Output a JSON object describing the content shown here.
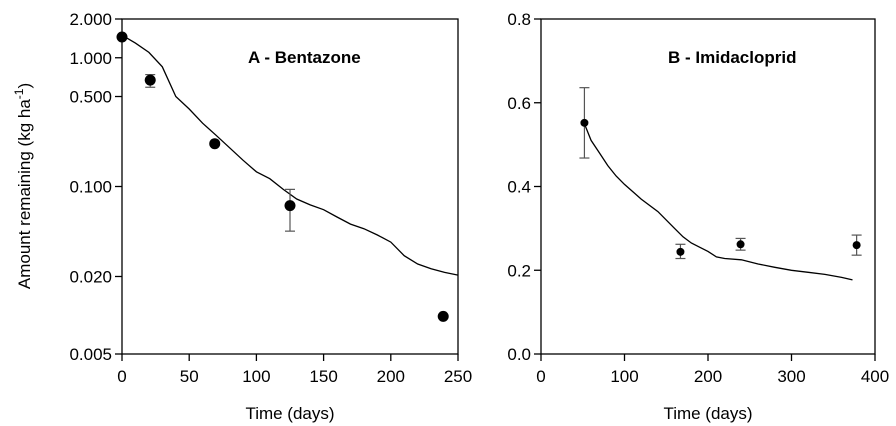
{
  "chart_data": [
    {
      "type": "scatter",
      "title": "A - Bentazone",
      "xlabel": "Time (days)",
      "ylabel_main": "Amount remaining (kg ha",
      "ylabel_sup": "-1",
      "ylabel_close": ")",
      "yscale": "log",
      "xlim": [
        0,
        250
      ],
      "ylim": [
        0.005,
        2.0
      ],
      "xticks": [
        0,
        50,
        100,
        150,
        200,
        250
      ],
      "xtick_labels": [
        "0",
        "50",
        "100",
        "150",
        "200",
        "250"
      ],
      "yticks": [
        0.005,
        0.02,
        0.1,
        0.5,
        1.0,
        2.0
      ],
      "ytick_labels": [
        "0.005",
        "0.020",
        "0.100",
        "0.500",
        "1.000",
        "2.000"
      ],
      "points": [
        {
          "x": 0,
          "y": 1.45
        },
        {
          "x": 21,
          "y": 0.67,
          "err_low": 0.59,
          "err_high": 0.74
        },
        {
          "x": 69,
          "y": 0.215
        },
        {
          "x": 125,
          "y": 0.071,
          "err_low": 0.045,
          "err_high": 0.095
        },
        {
          "x": 239,
          "y": 0.0098
        }
      ],
      "model_line": {
        "x": [
          0,
          10,
          20,
          30,
          40,
          50,
          60,
          70,
          80,
          90,
          100,
          110,
          120,
          130,
          140,
          150,
          160,
          170,
          180,
          190,
          200,
          210,
          220,
          230,
          240,
          250
        ],
        "y": [
          1.5,
          1.3,
          1.1,
          0.85,
          0.5,
          0.4,
          0.31,
          0.25,
          0.2,
          0.16,
          0.13,
          0.115,
          0.095,
          0.08,
          0.072,
          0.066,
          0.058,
          0.051,
          0.047,
          0.042,
          0.037,
          0.029,
          0.025,
          0.023,
          0.0215,
          0.0205
        ]
      }
    },
    {
      "type": "scatter",
      "title": "B - Imidacloprid",
      "xlabel": "Time (days)",
      "xlim": [
        0,
        400
      ],
      "ylim": [
        0.0,
        0.8
      ],
      "xticks": [
        0,
        100,
        200,
        300,
        400
      ],
      "xtick_labels": [
        "0",
        "100",
        "200",
        "300",
        "400"
      ],
      "yticks": [
        0.0,
        0.2,
        0.4,
        0.6,
        0.8
      ],
      "ytick_labels": [
        "0.0",
        "0.2",
        "0.4",
        "0.6",
        "0.8"
      ],
      "points": [
        {
          "x": 52,
          "y": 0.552,
          "err_low": 0.468,
          "err_high": 0.636
        },
        {
          "x": 167,
          "y": 0.244,
          "err_low": 0.228,
          "err_high": 0.262
        },
        {
          "x": 239,
          "y": 0.262,
          "err_low": 0.248,
          "err_high": 0.276
        },
        {
          "x": 378,
          "y": 0.26,
          "err_low": 0.236,
          "err_high": 0.284
        }
      ],
      "model_line": {
        "x": [
          52,
          60,
          70,
          80,
          90,
          100,
          120,
          140,
          160,
          170,
          180,
          190,
          200,
          210,
          220,
          240,
          260,
          280,
          300,
          320,
          340,
          360,
          373
        ],
        "y": [
          0.55,
          0.51,
          0.48,
          0.45,
          0.425,
          0.405,
          0.37,
          0.34,
          0.3,
          0.28,
          0.265,
          0.255,
          0.245,
          0.232,
          0.228,
          0.225,
          0.215,
          0.207,
          0.2,
          0.195,
          0.19,
          0.183,
          0.177
        ]
      }
    }
  ]
}
